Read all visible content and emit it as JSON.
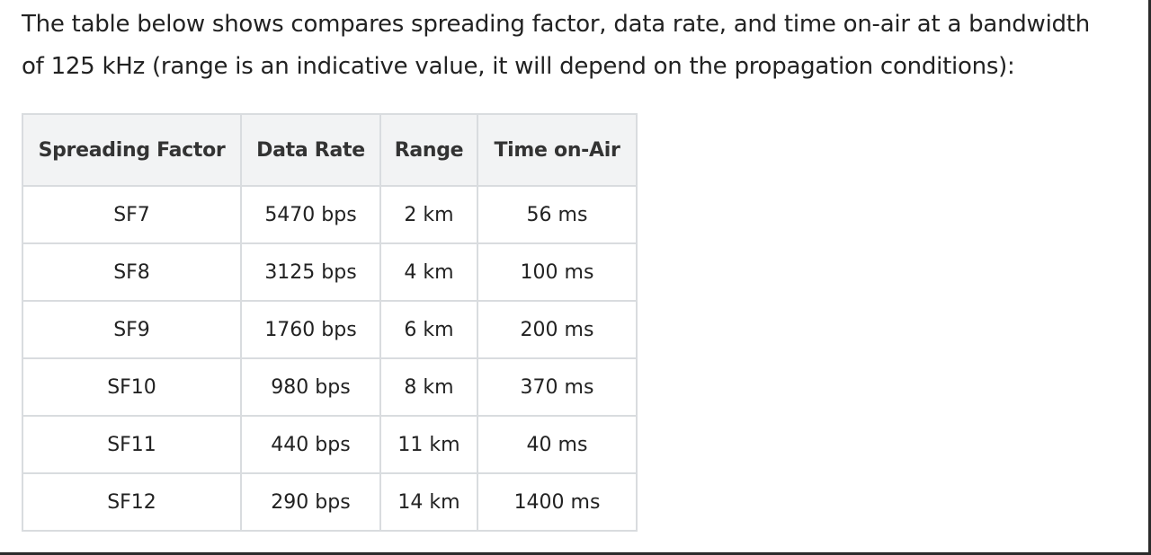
{
  "intro": {
    "line1": "The table below shows compares spreading factor, data rate, and time on-air at a bandwidth",
    "line2": "of 125 kHz (range is an indicative value, it will depend on the propagation conditions):"
  },
  "table": {
    "headers": [
      "Spreading Factor",
      "Data Rate",
      "Range",
      "Time on-Air"
    ],
    "rows": [
      [
        "SF7",
        "5470 bps",
        "2 km",
        "56 ms"
      ],
      [
        "SF8",
        "3125 bps",
        "4 km",
        "100 ms"
      ],
      [
        "SF9",
        "1760 bps",
        "6 km",
        "200 ms"
      ],
      [
        "SF10",
        "980 bps",
        "8 km",
        "370 ms"
      ],
      [
        "SF11",
        "440 bps",
        "11 km",
        "40 ms"
      ],
      [
        "SF12",
        "290 bps",
        "14 km",
        "1400 ms"
      ]
    ]
  }
}
